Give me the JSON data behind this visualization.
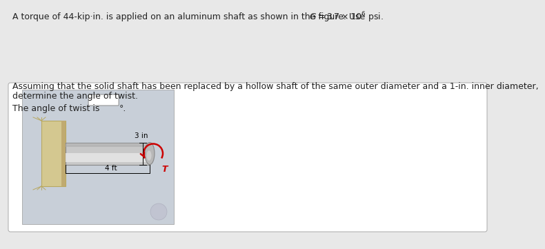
{
  "title_full": "A torque of 44-kip·in. is applied on an aluminum shaft as shown in the figure. Use G = 3.7 × 10",
  "title_exp": "6",
  "title_end": " psi.",
  "body_line1": "Assuming that the solid shaft has been replaced by a hollow shaft of the same outer diameter and a 1-in. inner diameter,",
  "body_line2": "determine the angle of twist.",
  "answer_prefix": "The angle of twist is ",
  "answer_suffix": "°.",
  "fig_label_4ft": "4 ft",
  "fig_label_3in": "3 in",
  "fig_label_T": "T",
  "bg_color": "#e8e8e8",
  "outer_box_face": "#ffffff",
  "img_box_face": "#c8cfd8",
  "wall_face": "#d4c890",
  "wall_edge": "#b8a860",
  "shaft_face": "#c8c8c8",
  "shaft_hi": "#e8e8e8",
  "shaft_edge": "#888888",
  "text_color": "#222222",
  "red_color": "#cc0000",
  "font_size_title": 9.0,
  "font_size_body": 9.0,
  "font_size_fig": 7.5,
  "font_size_T": 9.0
}
